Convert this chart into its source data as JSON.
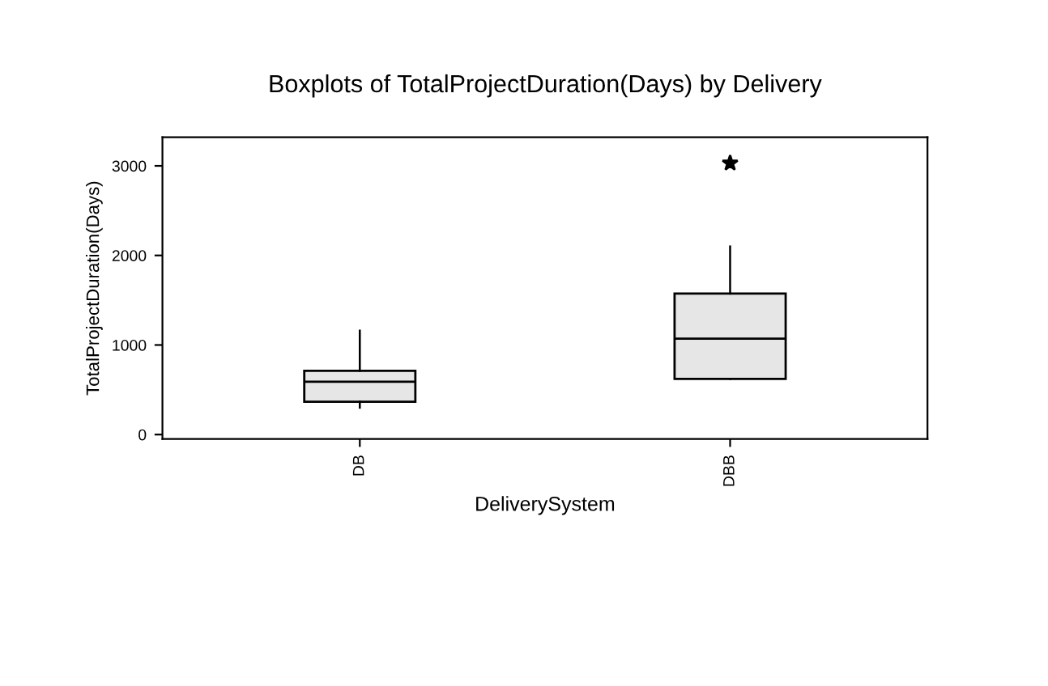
{
  "chart_data": {
    "type": "box",
    "title": "Boxplots of TotalProjectDuration(Days) by Delivery",
    "xlabel": "DeliverySystem",
    "ylabel": "TotalProjectDuration(Days)",
    "categories": [
      "DB",
      "DBB"
    ],
    "boxes": [
      {
        "low": 300,
        "q1": 367,
        "median": 590,
        "q3": 712,
        "high": 1160
      },
      {
        "low": 621,
        "q1": 621,
        "median": 1070,
        "q3": 1574,
        "high": 2100,
        "outliers": [
          3030
        ]
      }
    ],
    "color": "#e6e6e6",
    "ylim": [
      -50,
      3320
    ],
    "yticks": [
      0,
      1000,
      2000,
      3000
    ],
    "grid": false,
    "legend": false
  }
}
